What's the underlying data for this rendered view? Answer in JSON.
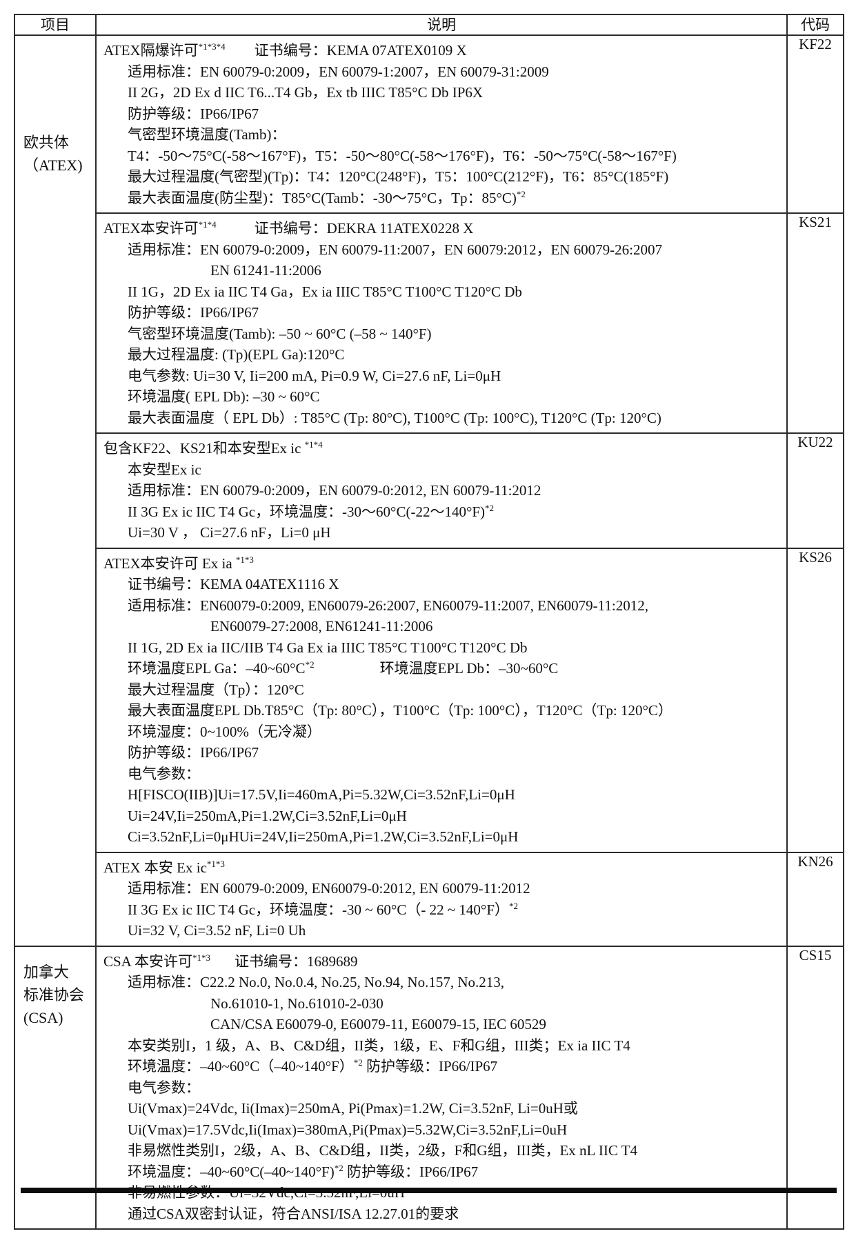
{
  "table": {
    "headers": {
      "item": "项目",
      "description": "说明",
      "code": "代码"
    },
    "groups": [
      {
        "label_lines": [
          "欧共体",
          "（ATEX)"
        ],
        "rows": [
          {
            "code": "KF22",
            "lines": [
              {
                "indent": 0,
                "segments": [
                  {
                    "t": "ATEX隔爆许可"
                  },
                  {
                    "sup": "*1*3*4"
                  },
                  {
                    "gap": 42
                  },
                  {
                    "t": "证书编号：KEMA 07ATEX0109 X"
                  }
                ]
              },
              {
                "indent": 1,
                "segments": [
                  {
                    "t": "适用标准：EN 60079-0:2009，EN 60079-1:2007，EN 60079-31:2009"
                  }
                ]
              },
              {
                "indent": 1,
                "segments": [
                  {
                    "t": "II 2G，2D Ex d IIC T6...T4 Gb，Ex tb IIIC T85°C Db IP6X"
                  }
                ]
              },
              {
                "indent": 1,
                "segments": [
                  {
                    "t": "防护等级：IP66/IP67"
                  }
                ]
              },
              {
                "indent": 1,
                "segments": [
                  {
                    "t": "气密型环境温度(Tamb)："
                  }
                ]
              },
              {
                "indent": 1,
                "segments": [
                  {
                    "t": "T4：-50～75°C(-58～167°F)，T5：-50～80°C(-58～176°F)，T6：-50～75°C(-58～167°F)"
                  }
                ]
              },
              {
                "indent": 1,
                "segments": [
                  {
                    "t": "最大过程温度(气密型)(Tp)：T4：120°C(248°F)，T5：100°C(212°F)，T6：85°C(185°F)"
                  }
                ]
              },
              {
                "indent": 1,
                "segments": [
                  {
                    "t": "最大表面温度(防尘型)：T85°C(Tamb：-30～75°C，Tp：85°C)"
                  },
                  {
                    "sup": "*2"
                  }
                ]
              }
            ]
          },
          {
            "code": "KS21",
            "lines": [
              {
                "indent": 0,
                "segments": [
                  {
                    "t": "ATEX本安许可"
                  },
                  {
                    "sup": "*1*4"
                  },
                  {
                    "gap": 55
                  },
                  {
                    "t": "证书编号：DEKRA 11ATEX0228 X"
                  }
                ]
              },
              {
                "indent": 1,
                "segments": [
                  {
                    "t": "适用标准：EN 60079-0:2009，EN 60079-11:2007，EN 60079:2012，EN 60079-26:2007"
                  }
                ]
              },
              {
                "indent": 2,
                "segments": [
                  {
                    "t": "EN 61241-11:2006"
                  }
                ]
              },
              {
                "indent": 1,
                "segments": [
                  {
                    "t": "II 1G，2D Ex ia IIC T4 Ga，Ex ia IIIC T85°C T100°C T120°C Db"
                  }
                ]
              },
              {
                "indent": 1,
                "segments": [
                  {
                    "t": "防护等级：IP66/IP67"
                  }
                ]
              },
              {
                "indent": 1,
                "segments": [
                  {
                    "t": "气密型环境温度(Tamb): –50 ~ 60°C (–58 ~ 140°F)"
                  }
                ]
              },
              {
                "indent": 1,
                "segments": [
                  {
                    "t": "最大过程温度: (Tp)(EPL Ga):120°C"
                  }
                ]
              },
              {
                "indent": 1,
                "segments": [
                  {
                    "t": "电气参数: Ui=30 V, Ii=200 mA, Pi=0.9 W, Ci=27.6 nF, Li=0μH"
                  }
                ]
              },
              {
                "indent": 1,
                "segments": [
                  {
                    "t": "环境温度( EPL Db): –30 ~ 60°C"
                  }
                ]
              },
              {
                "indent": 1,
                "segments": [
                  {
                    "t": "最大表面温度（ EPL Db）: T85°C (Tp: 80°C), T100°C (Tp: 100°C), T120°C (Tp: 120°C)"
                  }
                ]
              }
            ]
          },
          {
            "code": "KU22",
            "lines": [
              {
                "indent": 0,
                "segments": [
                  {
                    "t": "包含KF22、KS21和本安型Ex ic "
                  },
                  {
                    "sup": "*1*4"
                  }
                ]
              },
              {
                "indent": 1,
                "segments": [
                  {
                    "t": "本安型Ex ic"
                  }
                ]
              },
              {
                "indent": 1,
                "segments": [
                  {
                    "t": "适用标准：EN 60079-0:2009，EN 60079-0:2012, EN 60079-11:2012"
                  }
                ]
              },
              {
                "indent": 1,
                "segments": [
                  {
                    "t": "II 3G Ex ic IIC T4 Gc，环境温度：-30～60°C(-22～140°F)"
                  },
                  {
                    "sup": "*2"
                  }
                ]
              },
              {
                "indent": 1,
                "segments": [
                  {
                    "t": "Ui=30 V ， Ci=27.6 nF，Li=0 μH"
                  }
                ]
              }
            ]
          },
          {
            "code": "KS26",
            "lines": [
              {
                "indent": 0,
                "segments": [
                  {
                    "t": "ATEX本安许可 Ex ia "
                  },
                  {
                    "sup": "*1*3"
                  }
                ]
              },
              {
                "indent": 1,
                "segments": [
                  {
                    "t": "证书编号：KEMA 04ATEX1116 X"
                  }
                ]
              },
              {
                "indent": 1,
                "segments": [
                  {
                    "t": "适用标准：EN60079-0:2009, EN60079-26:2007, EN60079-11:2007, EN60079-11:2012,"
                  }
                ]
              },
              {
                "indent": 2,
                "segments": [
                  {
                    "t": "EN60079-27:2008, EN61241-11:2006"
                  }
                ]
              },
              {
                "indent": 1,
                "segments": [
                  {
                    "t": "II 1G, 2D Ex ia IIC/IIB T4 Ga Ex ia IIIC T85°C T100°C T120°C Db"
                  }
                ]
              },
              {
                "indent": 1,
                "segments": [
                  {
                    "t": "环境温度EPL Ga：–40~60°C"
                  },
                  {
                    "sup": "*2"
                  },
                  {
                    "gap": 95
                  },
                  {
                    "t": "环境温度EPL Db：–30~60°C"
                  }
                ]
              },
              {
                "indent": 1,
                "segments": [
                  {
                    "t": "最大过程温度（Tp）：120°C"
                  }
                ]
              },
              {
                "indent": 1,
                "segments": [
                  {
                    "t": "最大表面温度EPL Db.T85°C（Tp: 80°C），T100°C（Tp: 100°C），T120°C（Tp: 120°C）"
                  }
                ]
              },
              {
                "indent": 1,
                "segments": [
                  {
                    "t": "环境湿度：0~100%（无冷凝）"
                  }
                ]
              },
              {
                "indent": 1,
                "segments": [
                  {
                    "t": "防护等级：IP66/IP67"
                  }
                ]
              },
              {
                "indent": 1,
                "segments": [
                  {
                    "t": "电气参数："
                  }
                ]
              },
              {
                "indent": 1,
                "segments": [
                  {
                    "t": "H[FISCO(IIB)]Ui=17.5V,Ii=460mA,Pi=5.32W,Ci=3.52nF,Li=0μH"
                  }
                ]
              },
              {
                "indent": 1,
                "segments": [
                  {
                    "t": "Ui=24V,Ii=250mA,Pi=1.2W,Ci=3.52nF,Li=0μH"
                  }
                ]
              },
              {
                "indent": 1,
                "segments": [
                  {
                    "t": "Ci=3.52nF,Li=0μHUi=24V,Ii=250mA,Pi=1.2W,Ci=3.52nF,Li=0μH"
                  }
                ]
              }
            ]
          },
          {
            "code": "KN26",
            "lines": [
              {
                "indent": 0,
                "segments": [
                  {
                    "t": "ATEX 本安 Ex ic"
                  },
                  {
                    "sup": "*1*3"
                  }
                ]
              },
              {
                "indent": 1,
                "segments": [
                  {
                    "t": "适用标准：EN 60079-0:2009, EN60079-0:2012, EN 60079-11:2012"
                  }
                ]
              },
              {
                "indent": 1,
                "segments": [
                  {
                    "t": "II 3G Ex ic IIC T4 Gc，环境温度：-30 ~ 60°C（- 22 ~ 140°F）"
                  },
                  {
                    "sup": "*2"
                  }
                ]
              },
              {
                "indent": 1,
                "segments": [
                  {
                    "t": "Ui=32 V, Ci=3.52 nF, Li=0 Uh"
                  }
                ]
              }
            ]
          }
        ]
      },
      {
        "label_lines": [
          "加拿大",
          "标准协会",
          "(CSA)"
        ],
        "rows": [
          {
            "code": "CS15",
            "lines": [
              {
                "indent": 0,
                "segments": [
                  {
                    "t": "CSA 本安许可"
                  },
                  {
                    "sup": "*1*3"
                  },
                  {
                    "gap": 35
                  },
                  {
                    "t": "证书编号：1689689"
                  }
                ]
              },
              {
                "indent": 1,
                "segments": [
                  {
                    "t": "适用标准：C22.2 No.0, No.0.4, No.25, No.94, No.157, No.213,"
                  }
                ]
              },
              {
                "indent": 2,
                "segments": [
                  {
                    "t": "No.61010-1, No.61010-2-030"
                  }
                ]
              },
              {
                "indent": 2,
                "segments": [
                  {
                    "t": "CAN/CSA E60079-0, E60079-11, E60079-15, IEC 60529"
                  }
                ]
              },
              {
                "indent": 1,
                "segments": [
                  {
                    "t": "本安类别I，1 级，A、B、C&D组，II类，1级，E、F和G组，III类；Ex ia IIC T4"
                  }
                ]
              },
              {
                "indent": 1,
                "segments": [
                  {
                    "t": "环境温度：–40~60°C（–40~140°F）"
                  },
                  {
                    "sup": "*2"
                  },
                  {
                    "t": " 防护等级：IP66/IP67"
                  }
                ]
              },
              {
                "indent": 1,
                "segments": [
                  {
                    "t": "电气参数："
                  }
                ]
              },
              {
                "indent": 1,
                "segments": [
                  {
                    "t": "Ui(Vmax)=24Vdc, Ii(Imax)=250mA, Pi(Pmax)=1.2W, Ci=3.52nF, Li=0uH或"
                  }
                ]
              },
              {
                "indent": 1,
                "segments": [
                  {
                    "t": "Ui(Vmax)=17.5Vdc,Ii(Imax)=380mA,Pi(Pmax)=5.32W,Ci=3.52nF,Li=0uH"
                  }
                ]
              },
              {
                "indent": 1,
                "segments": [
                  {
                    "t": "非易燃性类别I，2级，A、B、C&D组，II类，2级，F和G组，III类，Ex nL IIC T4"
                  }
                ]
              },
              {
                "indent": 1,
                "segments": [
                  {
                    "t": "环境温度：–40~60°C(–40~140°F)"
                  },
                  {
                    "sup": "*2"
                  },
                  {
                    "t": " 防护等级：IP66/IP67"
                  }
                ]
              },
              {
                "indent": 1,
                "segments": [
                  {
                    "t": "非易燃性参数：Ui=32Vdc,Ci=3.52nF,Li=0uH"
                  }
                ]
              },
              {
                "indent": 1,
                "segments": [
                  {
                    "t": "通过CSA双密封认证，符合ANSI/ISA 12.27.01的要求"
                  }
                ]
              }
            ]
          }
        ]
      }
    ]
  }
}
